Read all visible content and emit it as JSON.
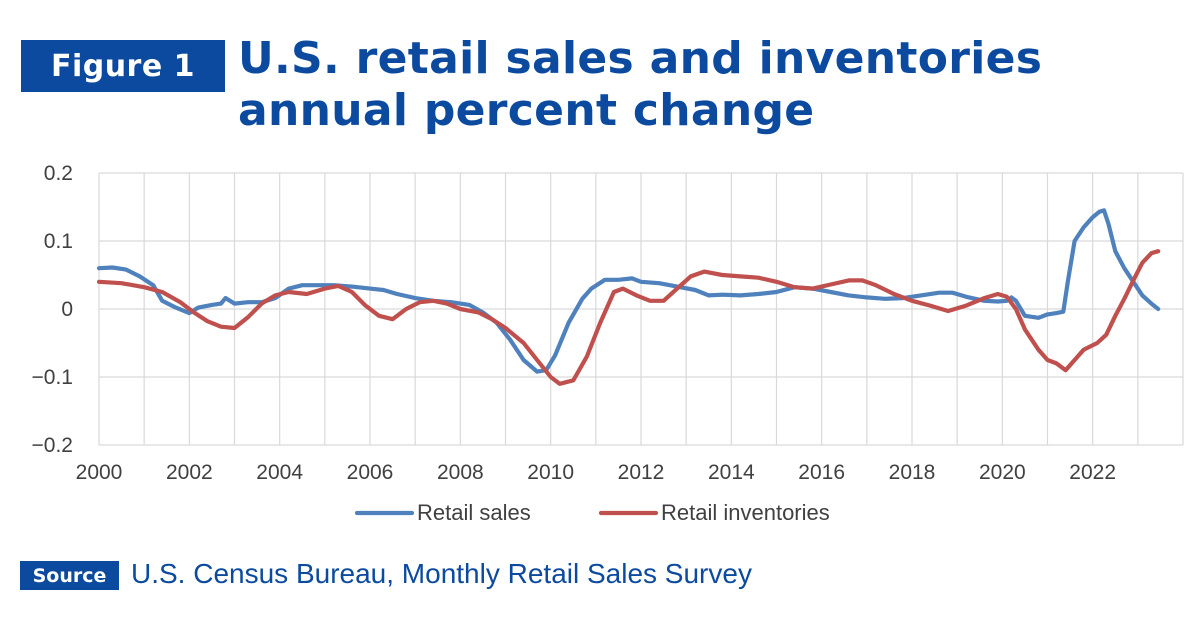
{
  "figure": {
    "badge": "Figure 1",
    "title": "U.S. retail sales and inventories annual percent change"
  },
  "source": {
    "badge": "Source",
    "text": "U.S. Census Bureau, Monthly Retail Sales Survey"
  },
  "colors": {
    "brand": "#0b4a9e",
    "retail_sales": "#4f81bd",
    "retail_inventories": "#c0504d",
    "grid": "#d9d9d9"
  },
  "chart_data": {
    "type": "line",
    "title": "U.S. retail sales and inventories annual percent change",
    "xlabel": "",
    "ylabel": "",
    "xlim": [
      2000,
      2024
    ],
    "ylim": [
      -0.2,
      0.2
    ],
    "x_ticks": [
      2000,
      2002,
      2004,
      2006,
      2008,
      2010,
      2012,
      2014,
      2016,
      2018,
      2020,
      2022
    ],
    "x_tick_labels": [
      "2000",
      "2002",
      "2004",
      "2006",
      "2008",
      "2010",
      "2012",
      "2014",
      "2016",
      "2018",
      "2020",
      "2022"
    ],
    "y_ticks": [
      -0.2,
      -0.1,
      0,
      0.1,
      0.2
    ],
    "y_tick_labels": [
      "−0.2",
      "−0.1",
      "0",
      "0.1",
      "0.2"
    ],
    "grid": true,
    "legend_position": "bottom",
    "series": [
      {
        "name": "Retail sales",
        "color": "#4f81bd",
        "points": [
          [
            2000.0,
            0.06
          ],
          [
            2000.3,
            0.061
          ],
          [
            2000.6,
            0.058
          ],
          [
            2000.9,
            0.048
          ],
          [
            2001.2,
            0.035
          ],
          [
            2001.4,
            0.012
          ],
          [
            2001.7,
            0.002
          ],
          [
            2002.0,
            -0.006
          ],
          [
            2002.2,
            0.002
          ],
          [
            2002.5,
            0.006
          ],
          [
            2002.7,
            0.008
          ],
          [
            2002.8,
            0.016
          ],
          [
            2003.0,
            0.008
          ],
          [
            2003.3,
            0.01
          ],
          [
            2003.6,
            0.01
          ],
          [
            2003.9,
            0.016
          ],
          [
            2004.2,
            0.03
          ],
          [
            2004.5,
            0.035
          ],
          [
            2004.9,
            0.035
          ],
          [
            2005.2,
            0.035
          ],
          [
            2005.6,
            0.033
          ],
          [
            2006.0,
            0.03
          ],
          [
            2006.3,
            0.028
          ],
          [
            2006.6,
            0.022
          ],
          [
            2007.0,
            0.016
          ],
          [
            2007.4,
            0.012
          ],
          [
            2007.8,
            0.01
          ],
          [
            2008.2,
            0.006
          ],
          [
            2008.5,
            -0.005
          ],
          [
            2008.8,
            -0.02
          ],
          [
            2009.1,
            -0.045
          ],
          [
            2009.4,
            -0.075
          ],
          [
            2009.7,
            -0.092
          ],
          [
            2009.9,
            -0.09
          ],
          [
            2010.1,
            -0.068
          ],
          [
            2010.4,
            -0.02
          ],
          [
            2010.7,
            0.015
          ],
          [
            2010.9,
            0.03
          ],
          [
            2011.2,
            0.043
          ],
          [
            2011.5,
            0.043
          ],
          [
            2011.8,
            0.045
          ],
          [
            2012.0,
            0.04
          ],
          [
            2012.4,
            0.038
          ],
          [
            2012.8,
            0.033
          ],
          [
            2013.2,
            0.028
          ],
          [
            2013.5,
            0.02
          ],
          [
            2013.8,
            0.021
          ],
          [
            2014.2,
            0.02
          ],
          [
            2014.6,
            0.022
          ],
          [
            2015.0,
            0.025
          ],
          [
            2015.4,
            0.032
          ],
          [
            2015.8,
            0.03
          ],
          [
            2016.2,
            0.025
          ],
          [
            2016.6,
            0.02
          ],
          [
            2017.0,
            0.017
          ],
          [
            2017.4,
            0.015
          ],
          [
            2017.8,
            0.016
          ],
          [
            2018.2,
            0.02
          ],
          [
            2018.6,
            0.024
          ],
          [
            2018.9,
            0.024
          ],
          [
            2019.2,
            0.018
          ],
          [
            2019.6,
            0.012
          ],
          [
            2019.9,
            0.011
          ],
          [
            2020.1,
            0.012
          ],
          [
            2020.2,
            0.017
          ],
          [
            2020.3,
            0.012
          ],
          [
            2020.5,
            -0.01
          ],
          [
            2020.8,
            -0.013
          ],
          [
            2021.0,
            -0.008
          ],
          [
            2021.2,
            -0.006
          ],
          [
            2021.35,
            -0.004
          ],
          [
            2021.45,
            0.04
          ],
          [
            2021.6,
            0.1
          ],
          [
            2021.8,
            0.12
          ],
          [
            2022.0,
            0.135
          ],
          [
            2022.15,
            0.143
          ],
          [
            2022.25,
            0.145
          ],
          [
            2022.35,
            0.125
          ],
          [
            2022.5,
            0.085
          ],
          [
            2022.7,
            0.06
          ],
          [
            2022.9,
            0.04
          ],
          [
            2023.1,
            0.02
          ],
          [
            2023.3,
            0.008
          ],
          [
            2023.45,
            0.0
          ]
        ]
      },
      {
        "name": "Retail inventories",
        "color": "#c0504d",
        "points": [
          [
            2000.0,
            0.04
          ],
          [
            2000.5,
            0.038
          ],
          [
            2001.0,
            0.032
          ],
          [
            2001.4,
            0.025
          ],
          [
            2001.8,
            0.01
          ],
          [
            2002.1,
            -0.005
          ],
          [
            2002.4,
            -0.018
          ],
          [
            2002.7,
            -0.026
          ],
          [
            2003.0,
            -0.028
          ],
          [
            2003.3,
            -0.012
          ],
          [
            2003.6,
            0.008
          ],
          [
            2003.9,
            0.02
          ],
          [
            2004.2,
            0.025
          ],
          [
            2004.6,
            0.022
          ],
          [
            2005.0,
            0.03
          ],
          [
            2005.3,
            0.034
          ],
          [
            2005.6,
            0.025
          ],
          [
            2005.9,
            0.005
          ],
          [
            2006.2,
            -0.01
          ],
          [
            2006.5,
            -0.015
          ],
          [
            2006.8,
            0.0
          ],
          [
            2007.1,
            0.01
          ],
          [
            2007.4,
            0.012
          ],
          [
            2007.7,
            0.008
          ],
          [
            2008.0,
            0.0
          ],
          [
            2008.4,
            -0.005
          ],
          [
            2008.7,
            -0.015
          ],
          [
            2009.0,
            -0.028
          ],
          [
            2009.4,
            -0.05
          ],
          [
            2009.7,
            -0.075
          ],
          [
            2010.0,
            -0.1
          ],
          [
            2010.2,
            -0.11
          ],
          [
            2010.5,
            -0.105
          ],
          [
            2010.8,
            -0.07
          ],
          [
            2011.1,
            -0.02
          ],
          [
            2011.4,
            0.025
          ],
          [
            2011.6,
            0.03
          ],
          [
            2011.9,
            0.02
          ],
          [
            2012.2,
            0.012
          ],
          [
            2012.5,
            0.012
          ],
          [
            2012.8,
            0.03
          ],
          [
            2013.1,
            0.048
          ],
          [
            2013.4,
            0.055
          ],
          [
            2013.8,
            0.05
          ],
          [
            2014.2,
            0.048
          ],
          [
            2014.6,
            0.046
          ],
          [
            2015.0,
            0.04
          ],
          [
            2015.4,
            0.032
          ],
          [
            2015.8,
            0.03
          ],
          [
            2016.2,
            0.036
          ],
          [
            2016.6,
            0.042
          ],
          [
            2016.9,
            0.042
          ],
          [
            2017.2,
            0.035
          ],
          [
            2017.6,
            0.022
          ],
          [
            2018.0,
            0.012
          ],
          [
            2018.4,
            0.005
          ],
          [
            2018.8,
            -0.003
          ],
          [
            2019.2,
            0.005
          ],
          [
            2019.6,
            0.016
          ],
          [
            2019.9,
            0.022
          ],
          [
            2020.1,
            0.018
          ],
          [
            2020.3,
            0.0
          ],
          [
            2020.5,
            -0.03
          ],
          [
            2020.8,
            -0.06
          ],
          [
            2021.0,
            -0.075
          ],
          [
            2021.2,
            -0.08
          ],
          [
            2021.4,
            -0.09
          ],
          [
            2021.6,
            -0.075
          ],
          [
            2021.8,
            -0.06
          ],
          [
            2022.1,
            -0.05
          ],
          [
            2022.3,
            -0.038
          ],
          [
            2022.5,
            -0.01
          ],
          [
            2022.7,
            0.015
          ],
          [
            2022.9,
            0.042
          ],
          [
            2023.1,
            0.068
          ],
          [
            2023.3,
            0.082
          ],
          [
            2023.45,
            0.085
          ]
        ]
      }
    ]
  }
}
